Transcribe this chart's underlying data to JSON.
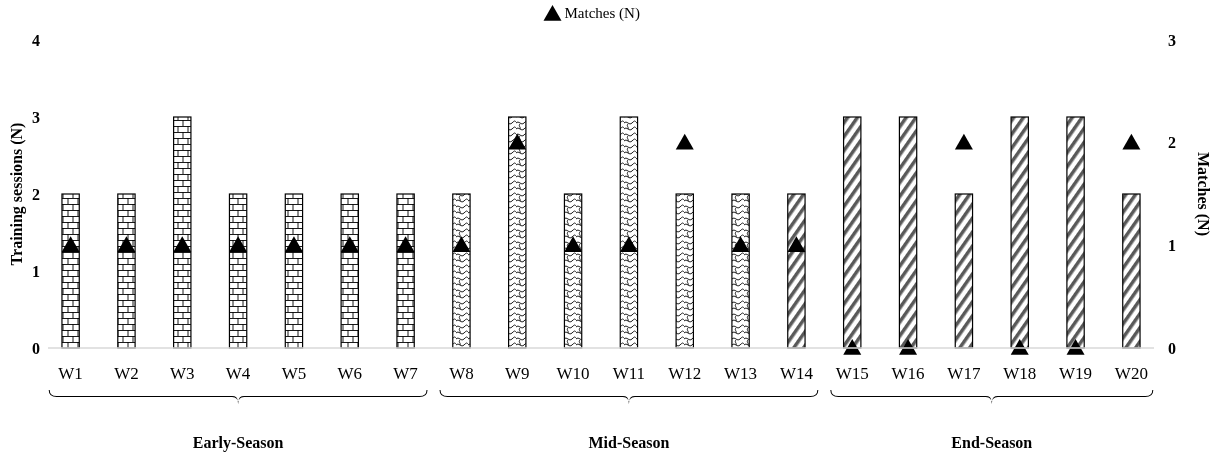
{
  "chart_data": {
    "type": "bar",
    "ylabel": "Training sessions (N)",
    "y2label": "Matches (N)",
    "categories": [
      "W1",
      "W2",
      "W3",
      "W4",
      "W5",
      "W6",
      "W7",
      "W8",
      "W9",
      "W10",
      "W11",
      "W12",
      "W13",
      "W14",
      "W15",
      "W16",
      "W17",
      "W18",
      "W19",
      "W20"
    ],
    "series": [
      {
        "color": "#000000",
        "values": [
          2,
          2,
          3,
          2,
          2,
          2,
          2,
          null,
          null,
          null,
          null,
          null,
          null,
          null,
          null,
          null,
          null,
          null,
          null,
          null
        ]
      },
      {
        "color": "#000000",
        "values": [
          null,
          null,
          null,
          null,
          null,
          null,
          null,
          2,
          3,
          2,
          3,
          2,
          2,
          null,
          null,
          null,
          null,
          null,
          null,
          null
        ]
      },
      {
        "color": "#000000",
        "values": [
          null,
          null,
          null,
          null,
          null,
          null,
          null,
          null,
          null,
          null,
          null,
          null,
          null,
          2,
          3,
          3,
          2,
          3,
          3,
          2
        ]
      },
      {
        "type": "scatter",
        "name": "Matches (N)",
        "color": "#000000",
        "axis": "y2",
        "marker": "triangle",
        "values": [
          1,
          1,
          1,
          1,
          1,
          1,
          1,
          1,
          2,
          1,
          1,
          2,
          1,
          1,
          0,
          0,
          2,
          0,
          0,
          2
        ]
      }
    ],
    "ylim": [
      0,
      4
    ],
    "yticks": [
      0,
      1,
      2,
      3,
      4
    ],
    "y2lim": [
      0,
      3
    ],
    "y2ticks": [
      0,
      1,
      2,
      3
    ],
    "annotations": [
      "Early-Season",
      "Mid-Season",
      "End-Season"
    ],
    "grid": false,
    "legend": "top"
  }
}
